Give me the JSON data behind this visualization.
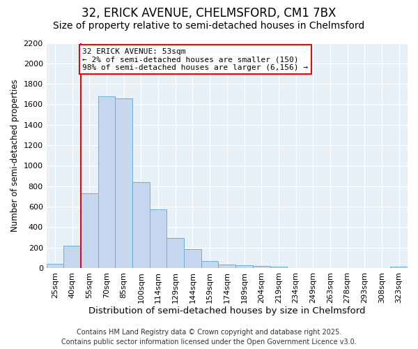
{
  "title1": "32, ERICK AVENUE, CHELMSFORD, CM1 7BX",
  "title2": "Size of property relative to semi-detached houses in Chelmsford",
  "xlabel": "Distribution of semi-detached houses by size in Chelmsford",
  "ylabel": "Number of semi-detached properties",
  "categories": [
    "25sqm",
    "40sqm",
    "55sqm",
    "70sqm",
    "85sqm",
    "100sqm",
    "114sqm",
    "129sqm",
    "144sqm",
    "159sqm",
    "174sqm",
    "189sqm",
    "204sqm",
    "219sqm",
    "234sqm",
    "249sqm",
    "263sqm",
    "278sqm",
    "293sqm",
    "308sqm",
    "323sqm"
  ],
  "values": [
    40,
    220,
    730,
    1680,
    1660,
    840,
    570,
    295,
    185,
    65,
    35,
    25,
    20,
    15,
    0,
    0,
    0,
    0,
    0,
    0,
    15
  ],
  "bar_color": "#c5d8f0",
  "bar_edge_color": "#6baed6",
  "background_color": "#e8f0f8",
  "red_line_index": 2,
  "annotation_title": "32 ERICK AVENUE: 53sqm",
  "annotation_line1": "← 2% of semi-detached houses are smaller (150)",
  "annotation_line2": "98% of semi-detached houses are larger (6,156) →",
  "ylim": [
    0,
    2200
  ],
  "yticks": [
    0,
    200,
    400,
    600,
    800,
    1000,
    1200,
    1400,
    1600,
    1800,
    2000,
    2200
  ],
  "footer1": "Contains HM Land Registry data © Crown copyright and database right 2025.",
  "footer2": "Contains public sector information licensed under the Open Government Licence v3.0.",
  "title1_fontsize": 12,
  "title2_fontsize": 10,
  "xlabel_fontsize": 9.5,
  "ylabel_fontsize": 8.5,
  "tick_fontsize": 8,
  "annotation_fontsize": 8,
  "footer_fontsize": 7
}
